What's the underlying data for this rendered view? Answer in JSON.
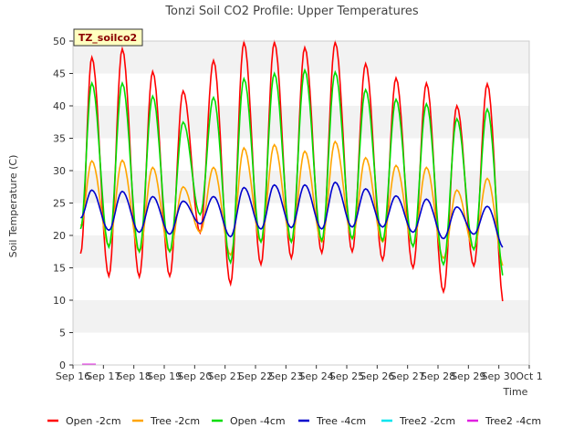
{
  "chart_data": {
    "type": "line",
    "title": "Tonzi Soil CO2 Profile: Upper Temperatures",
    "xlabel": "Time",
    "ylabel": "Soil Temperature (C)",
    "tag": "TZ_soilco2",
    "xlim": [
      0,
      15
    ],
    "ylim": [
      0,
      50
    ],
    "x_ticks": [
      {
        "v": 0,
        "label": "Sep 16"
      },
      {
        "v": 1,
        "label": "Sep 17"
      },
      {
        "v": 2,
        "label": "Sep 18"
      },
      {
        "v": 3,
        "label": "Sep 19"
      },
      {
        "v": 4,
        "label": "Sep 20"
      },
      {
        "v": 5,
        "label": "Sep 21"
      },
      {
        "v": 6,
        "label": "Sep 22"
      },
      {
        "v": 7,
        "label": "Sep 23"
      },
      {
        "v": 8,
        "label": "Sep 24"
      },
      {
        "v": 9,
        "label": "Sep 25"
      },
      {
        "v": 10,
        "label": "Sep 26"
      },
      {
        "v": 11,
        "label": "Sep 27"
      },
      {
        "v": 12,
        "label": "Sep 28"
      },
      {
        "v": 13,
        "label": "Sep 29"
      },
      {
        "v": 14,
        "label": "Sep 30"
      },
      {
        "v": 15,
        "label": "Oct 1"
      }
    ],
    "y_ticks": [
      0,
      5,
      10,
      15,
      20,
      25,
      30,
      35,
      40,
      45,
      50
    ],
    "grid": "horizontal bands",
    "legend_position": "bottom",
    "days": [
      0,
      1,
      2,
      3,
      4,
      5,
      6,
      7,
      8,
      9,
      10,
      11,
      12,
      13,
      14
    ],
    "series": [
      {
        "name": "Open -2cm",
        "color": "#ff0000",
        "start": [
          0.25,
          17.2
        ],
        "max": [
          47.5,
          48.8,
          45.3,
          42.3,
          47.0,
          49.8,
          49.8,
          49.0,
          49.8,
          46.5,
          44.3,
          43.5,
          40.0,
          43.4
        ],
        "min": [
          13.7,
          13.6,
          13.7,
          20.4,
          12.5,
          15.5,
          16.5,
          17.3,
          17.5,
          16.2,
          15.0,
          11.3,
          15.3,
          9.0
        ],
        "end": [
          14.75,
          14.0
        ]
      },
      {
        "name": "Tree -2cm",
        "color": "#ffa500",
        "start": [
          0.25,
          21.5
        ],
        "max": [
          31.5,
          31.6,
          30.5,
          27.5,
          30.5,
          33.5,
          34.0,
          33.0,
          34.5,
          32.0,
          30.8,
          30.5,
          27.0,
          28.8
        ],
        "min": [
          18.5,
          17.5,
          17.5,
          20.5,
          17.0,
          19.0,
          19.0,
          19.0,
          19.5,
          19.0,
          18.5,
          16.5,
          18.0,
          15.0
        ],
        "end": [
          14.75,
          18.5
        ]
      },
      {
        "name": "Open -4cm",
        "color": "#00dd00",
        "start": [
          0.25,
          21.0
        ],
        "max": [
          43.5,
          43.5,
          41.5,
          37.5,
          41.3,
          44.2,
          45.0,
          45.5,
          45.2,
          42.5,
          41.0,
          40.3,
          38.0,
          39.5
        ],
        "min": [
          18.2,
          17.5,
          17.5,
          23.2,
          15.8,
          19.0,
          19.0,
          19.2,
          19.5,
          19.2,
          18.3,
          15.5,
          17.8,
          13.2
        ],
        "end": [
          14.75,
          18.0
        ]
      },
      {
        "name": "Tree -4cm",
        "color": "#0000cc",
        "start": [
          0.25,
          22.7
        ],
        "max": [
          27.0,
          26.8,
          26.0,
          25.3,
          26.0,
          27.4,
          27.8,
          27.8,
          28.2,
          27.2,
          26.1,
          25.6,
          24.4,
          24.5
        ],
        "min": [
          20.8,
          20.5,
          20.2,
          21.8,
          19.8,
          21.0,
          21.2,
          21.0,
          21.3,
          21.3,
          20.5,
          19.5,
          20.2,
          18.0
        ],
        "end": [
          14.75,
          20.3
        ]
      },
      {
        "name": "Tree2 -2cm",
        "color": "#00e5ee",
        "values": []
      },
      {
        "name": "Tree2 -4cm",
        "color": "#e020e0",
        "values": [
          [
            0.3,
            0.1
          ],
          [
            0.75,
            0.1
          ]
        ]
      }
    ]
  }
}
